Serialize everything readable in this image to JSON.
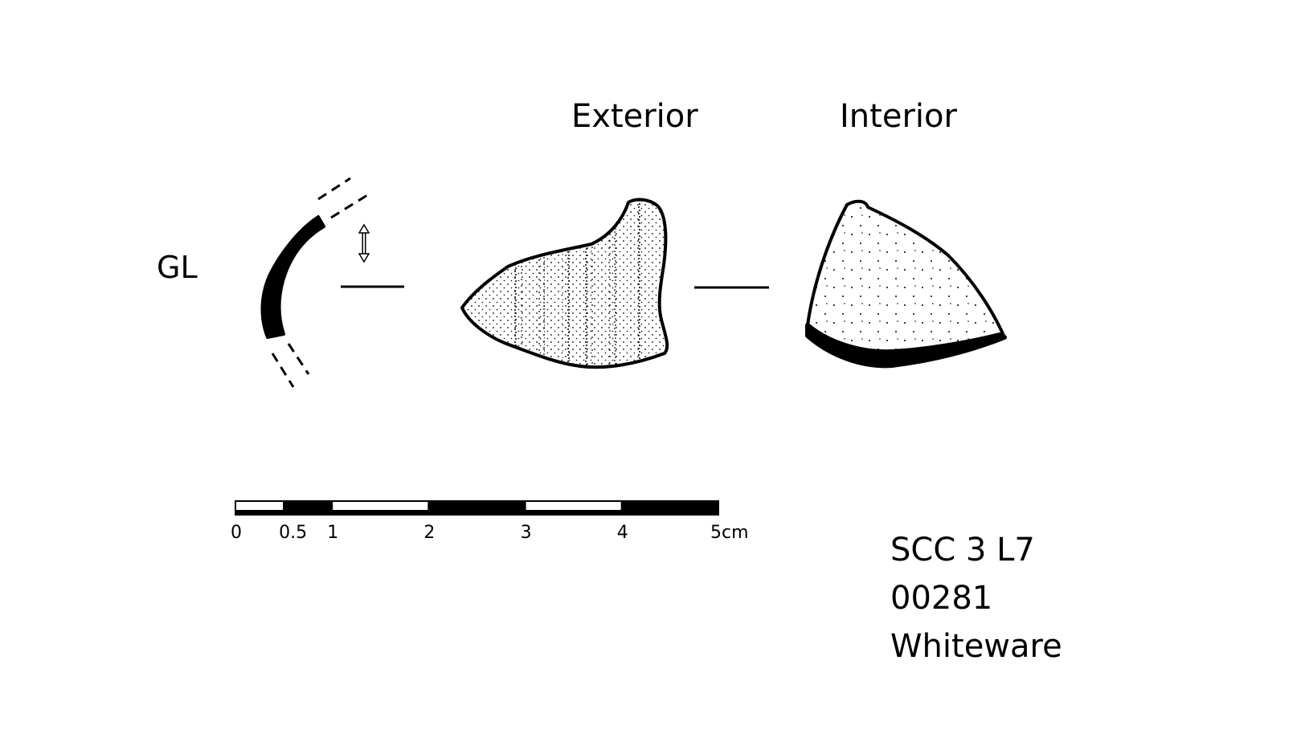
{
  "views": {
    "exterior_label": "Exterior",
    "interior_label": "Interior"
  },
  "section": {
    "label": "GL"
  },
  "scale_bar": {
    "ticks": [
      {
        "label": "0",
        "value": 0
      },
      {
        "label": "0.5",
        "value": 0.5
      },
      {
        "label": "1",
        "value": 1
      },
      {
        "label": "2",
        "value": 2
      },
      {
        "label": "3",
        "value": 3
      },
      {
        "label": "4",
        "value": 4
      },
      {
        "label": "5cm",
        "value": 5
      }
    ],
    "max_value": 5
  },
  "catalog": {
    "context": "SCC 3 L7",
    "number": "00281",
    "ware": "Whiteware"
  },
  "colors": {
    "ink": "#000000",
    "paper": "#ffffff"
  }
}
